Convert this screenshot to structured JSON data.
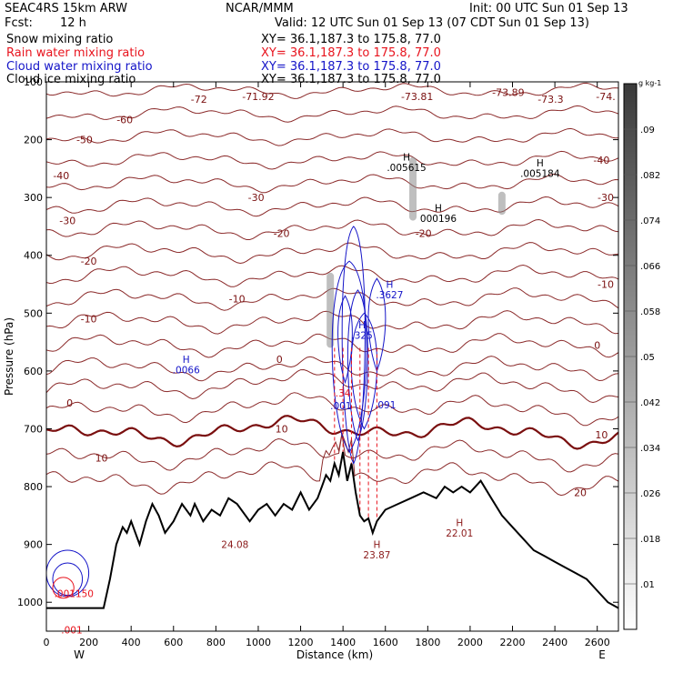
{
  "header": {
    "model": "SEAC4RS 15km ARW",
    "org": "NCAR/MMM",
    "init": "Init: 00 UTC Sun 01 Sep 13",
    "fcst_label": "Fcst:",
    "fcst_value": "12 h",
    "valid": "Valid: 12 UTC Sun 01 Sep 13 (07 CDT Sun 01 Sep 13)",
    "fields": [
      {
        "label": "Snow mixing ratio",
        "xy": "XY=  36.1,187.3 to 175.8, 77.0",
        "color": "#000000"
      },
      {
        "label": "Rain water mixing ratio",
        "xy": "XY=  36.1,187.3 to 175.8, 77.0",
        "color": "#e8141e"
      },
      {
        "label": "Cloud water mixing ratio",
        "xy": "XY=  36.1,187.3 to 175.8, 77.0",
        "color": "#1414c8"
      },
      {
        "label": "Cloud ice mixing ratio",
        "xy": "XY=  36.1,187.3 to 175.8, 77.0",
        "color": "#000000"
      }
    ]
  },
  "chart_data": {
    "type": "contour",
    "xlabel": "Distance (km)",
    "ylabel": "Pressure (hPa)",
    "xlim": [
      0,
      2700
    ],
    "ylim": [
      1050,
      100
    ],
    "x_ticks": [
      "0",
      "200",
      "400",
      "600",
      "800",
      "1000",
      "1200",
      "1400",
      "1600",
      "1800",
      "2000",
      "2200",
      "2400",
      "2600"
    ],
    "y_ticks": [
      "100",
      "200",
      "300",
      "400",
      "500",
      "600",
      "700",
      "800",
      "900",
      "1000"
    ],
    "x_end_labels": {
      "left": "W",
      "right": "E"
    },
    "colorbar": {
      "unit": "g kg-1",
      "ticks": [
        ".01",
        ".018",
        ".026",
        ".034",
        ".042",
        ".05",
        ".058",
        ".066",
        ".074",
        ".082",
        ".09"
      ]
    },
    "terrain_pressure": [
      [
        0,
        1010
      ],
      [
        270,
        1010
      ],
      [
        300,
        960
      ],
      [
        330,
        900
      ],
      [
        360,
        870
      ],
      [
        380,
        880
      ],
      [
        400,
        860
      ],
      [
        440,
        900
      ],
      [
        470,
        860
      ],
      [
        500,
        830
      ],
      [
        530,
        850
      ],
      [
        560,
        880
      ],
      [
        600,
        860
      ],
      [
        640,
        830
      ],
      [
        680,
        850
      ],
      [
        700,
        830
      ],
      [
        740,
        860
      ],
      [
        780,
        840
      ],
      [
        820,
        850
      ],
      [
        860,
        820
      ],
      [
        900,
        830
      ],
      [
        960,
        860
      ],
      [
        1000,
        840
      ],
      [
        1040,
        830
      ],
      [
        1080,
        850
      ],
      [
        1120,
        830
      ],
      [
        1160,
        840
      ],
      [
        1200,
        810
      ],
      [
        1240,
        840
      ],
      [
        1280,
        820
      ],
      [
        1300,
        800
      ],
      [
        1320,
        780
      ],
      [
        1340,
        790
      ],
      [
        1360,
        760
      ],
      [
        1380,
        780
      ],
      [
        1400,
        740
      ],
      [
        1420,
        790
      ],
      [
        1440,
        760
      ],
      [
        1460,
        810
      ],
      [
        1480,
        850
      ],
      [
        1500,
        860
      ],
      [
        1520,
        855
      ],
      [
        1540,
        880
      ],
      [
        1560,
        860
      ],
      [
        1600,
        840
      ],
      [
        1660,
        830
      ],
      [
        1720,
        820
      ],
      [
        1780,
        810
      ],
      [
        1840,
        820
      ],
      [
        1880,
        800
      ],
      [
        1920,
        810
      ],
      [
        1960,
        800
      ],
      [
        2000,
        810
      ],
      [
        2050,
        790
      ],
      [
        2100,
        820
      ],
      [
        2150,
        850
      ],
      [
        2200,
        870
      ],
      [
        2250,
        890
      ],
      [
        2300,
        910
      ],
      [
        2350,
        920
      ],
      [
        2400,
        930
      ],
      [
        2450,
        940
      ],
      [
        2500,
        950
      ],
      [
        2550,
        960
      ],
      [
        2600,
        980
      ],
      [
        2650,
        1000
      ],
      [
        2700,
        1010
      ]
    ],
    "isotherm_labels": [
      {
        "t": "-72",
        "x": 720,
        "p": 130
      },
      {
        "t": "-71.92",
        "x": 1000,
        "p": 125
      },
      {
        "t": "-73.81",
        "x": 1750,
        "p": 125
      },
      {
        "t": "-73.89",
        "x": 2180,
        "p": 118
      },
      {
        "t": "-73.3",
        "x": 2380,
        "p": 130
      },
      {
        "t": "-74.",
        "x": 2640,
        "p": 125
      },
      {
        "t": "-60",
        "x": 370,
        "p": 165
      },
      {
        "t": "-50",
        "x": 180,
        "p": 200
      },
      {
        "t": "-40",
        "x": 70,
        "p": 262
      },
      {
        "t": "-40",
        "x": 2620,
        "p": 235
      },
      {
        "t": "-30",
        "x": 100,
        "p": 340
      },
      {
        "t": "-30",
        "x": 990,
        "p": 300
      },
      {
        "t": "-30",
        "x": 2640,
        "p": 300
      },
      {
        "t": "-20",
        "x": 200,
        "p": 410
      },
      {
        "t": "-20",
        "x": 1110,
        "p": 362
      },
      {
        "t": "-20",
        "x": 1780,
        "p": 362
      },
      {
        "t": "-10",
        "x": 200,
        "p": 510
      },
      {
        "t": "-10",
        "x": 900,
        "p": 475
      },
      {
        "t": "-10",
        "x": 2640,
        "p": 450
      },
      {
        "t": "0",
        "x": 110,
        "p": 655
      },
      {
        "t": "0",
        "x": 1100,
        "p": 580
      },
      {
        "t": "0",
        "x": 2600,
        "p": 555
      },
      {
        "t": "10",
        "x": 1110,
        "p": 700
      },
      {
        "t": "10",
        "x": 260,
        "p": 750
      },
      {
        "t": "10",
        "x": 2620,
        "p": 710
      },
      {
        "t": "20",
        "x": 2520,
        "p": 810
      }
    ],
    "extrema_labels": [
      {
        "t": "H",
        "x": 1700,
        "p": 230,
        "c": "#000000"
      },
      {
        "t": ".005615",
        "x": 1700,
        "p": 248,
        "c": "#000000"
      },
      {
        "t": "H",
        "x": 2330,
        "p": 240,
        "c": "#000000"
      },
      {
        "t": ".005184",
        "x": 2330,
        "p": 258,
        "c": "#000000"
      },
      {
        "t": "H",
        "x": 1850,
        "p": 318,
        "c": "#000000"
      },
      {
        "t": "000196",
        "x": 1850,
        "p": 336,
        "c": "#000000"
      },
      {
        "t": "H",
        "x": 1620,
        "p": 450,
        "c": "#1414c8"
      },
      {
        "t": ".3627",
        "x": 1620,
        "p": 468,
        "c": "#1414c8"
      },
      {
        "t": "H",
        "x": 660,
        "p": 580,
        "c": "#1414c8"
      },
      {
        "t": ".0066",
        "x": 660,
        "p": 598,
        "c": "#1414c8"
      },
      {
        "t": "H",
        "x": 1490,
        "p": 520,
        "c": "#1414c8"
      },
      {
        "t": ".325",
        "x": 1490,
        "p": 538,
        "c": "#1414c8"
      },
      {
        "t": ".34",
        "x": 1400,
        "p": 638,
        "c": "#e8141e"
      },
      {
        "t": ".001",
        "x": 1390,
        "p": 660,
        "c": "#1414c8"
      },
      {
        "t": ".091",
        "x": 1600,
        "p": 658,
        "c": "#1414c8"
      },
      {
        "t": "24.08",
        "x": 890,
        "p": 900,
        "c": "#8b1a1a"
      },
      {
        "t": "H",
        "x": 1560,
        "p": 900,
        "c": "#8b1a1a"
      },
      {
        "t": "23.87",
        "x": 1560,
        "p": 918,
        "c": "#8b1a1a"
      },
      {
        "t": "H",
        "x": 1950,
        "p": 862,
        "c": "#8b1a1a"
      },
      {
        "t": "22.01",
        "x": 1950,
        "p": 880,
        "c": "#8b1a1a"
      },
      {
        "t": ".001150",
        "x": 130,
        "p": 985,
        "c": "#e8141e"
      },
      {
        "t": ".001",
        "x": 120,
        "p": 1048,
        "c": "#e8141e"
      }
    ]
  }
}
